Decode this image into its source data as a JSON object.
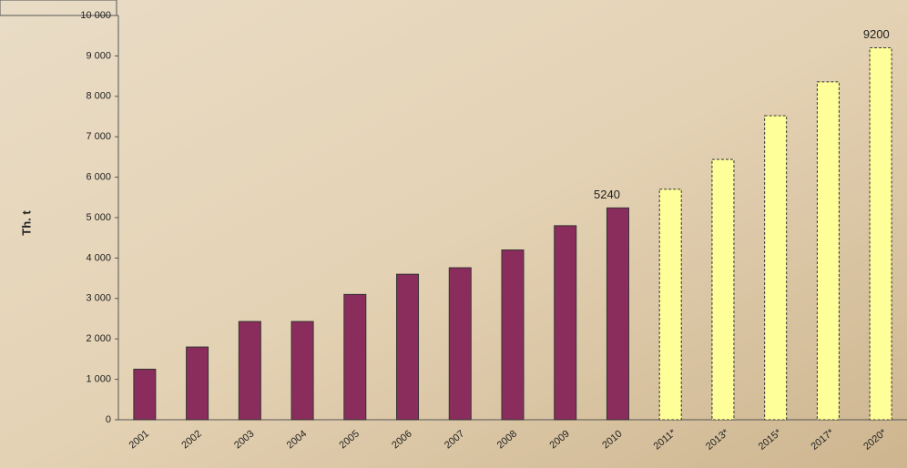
{
  "chart_data": {
    "type": "bar",
    "y_label": "Th. t",
    "categories": [
      "2001",
      "2002",
      "2003",
      "2004",
      "2005",
      "2006",
      "2007",
      "2008",
      "2009",
      "2010",
      "2011*",
      "2013*",
      "2015*",
      "2017*",
      "2020*"
    ],
    "values": [
      1250,
      1800,
      2430,
      2430,
      3100,
      3600,
      3760,
      4200,
      4800,
      5240,
      5700,
      6440,
      7520,
      8360,
      9200
    ],
    "value_labels": [
      null,
      null,
      null,
      null,
      null,
      null,
      null,
      null,
      null,
      "5240",
      null,
      null,
      null,
      null,
      "9200"
    ],
    "colors": [
      "#8b2d5c",
      "#8b2d5c",
      "#8b2d5c",
      "#8b2d5c",
      "#8b2d5c",
      "#8b2d5c",
      "#8b2d5c",
      "#8b2d5c",
      "#8b2d5c",
      "#8b2d5c",
      "#ffff99",
      "#ffff99",
      "#ffff99",
      "#ffff99",
      "#ffff99"
    ],
    "ylim": [
      0,
      10000
    ],
    "yticks": [
      0,
      {
        "value": 1000,
        "label": "1 000"
      },
      {
        "value": 2000,
        "label": "2 000"
      },
      {
        "value": 3000,
        "label": "3 000"
      },
      {
        "value": 4000,
        "label": "4 000"
      },
      {
        "value": 5000,
        "label": "5 000"
      },
      {
        "value": 6000,
        "label": "6 000"
      },
      {
        "value": 7000,
        "label": "7 000"
      },
      {
        "value": 8000,
        "label": "8 000"
      },
      {
        "value": 9000,
        "label": "9 000"
      },
      {
        "value": 10000,
        "label": "10 000"
      }
    ]
  }
}
